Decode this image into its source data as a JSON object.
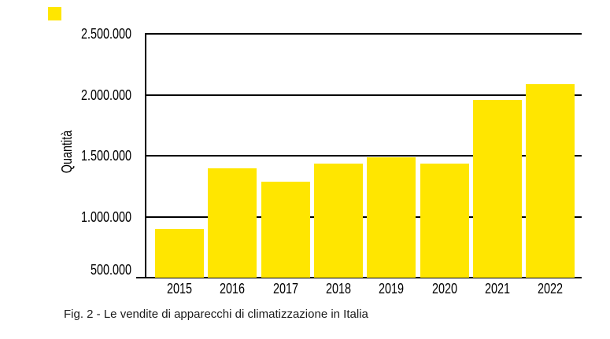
{
  "figure": {
    "caption": "Fig. 2 - Le vendite di apparecchi di climatizzazione in Italia"
  },
  "legend": {
    "swatch_color": "#FFE600"
  },
  "colors": {
    "bar_yellow": "#FFE600",
    "axis_black": "#000000",
    "background": "#FFFFFF",
    "caption_text": "#1A1A1A"
  },
  "chart_data": {
    "type": "bar",
    "title": "",
    "xlabel": "",
    "ylabel": "Quantità",
    "categories": [
      "2015",
      "2016",
      "2017",
      "2018",
      "2019",
      "2020",
      "2021",
      "2022"
    ],
    "values": [
      900000,
      1400000,
      1290000,
      1440000,
      1490000,
      1440000,
      1960000,
      2090000
    ],
    "ylim": [
      500000,
      2500000
    ],
    "yticks": [
      {
        "value": 2500000,
        "label": "2.500.000"
      },
      {
        "value": 2000000,
        "label": "2.000.000"
      },
      {
        "value": 1500000,
        "label": "1.500.000"
      },
      {
        "value": 1000000,
        "label": "1.000.000"
      },
      {
        "value": 500000,
        "label": "500.000"
      }
    ],
    "bar_color": "#FFE600",
    "grid": "horizontal",
    "legend_position": "none"
  }
}
